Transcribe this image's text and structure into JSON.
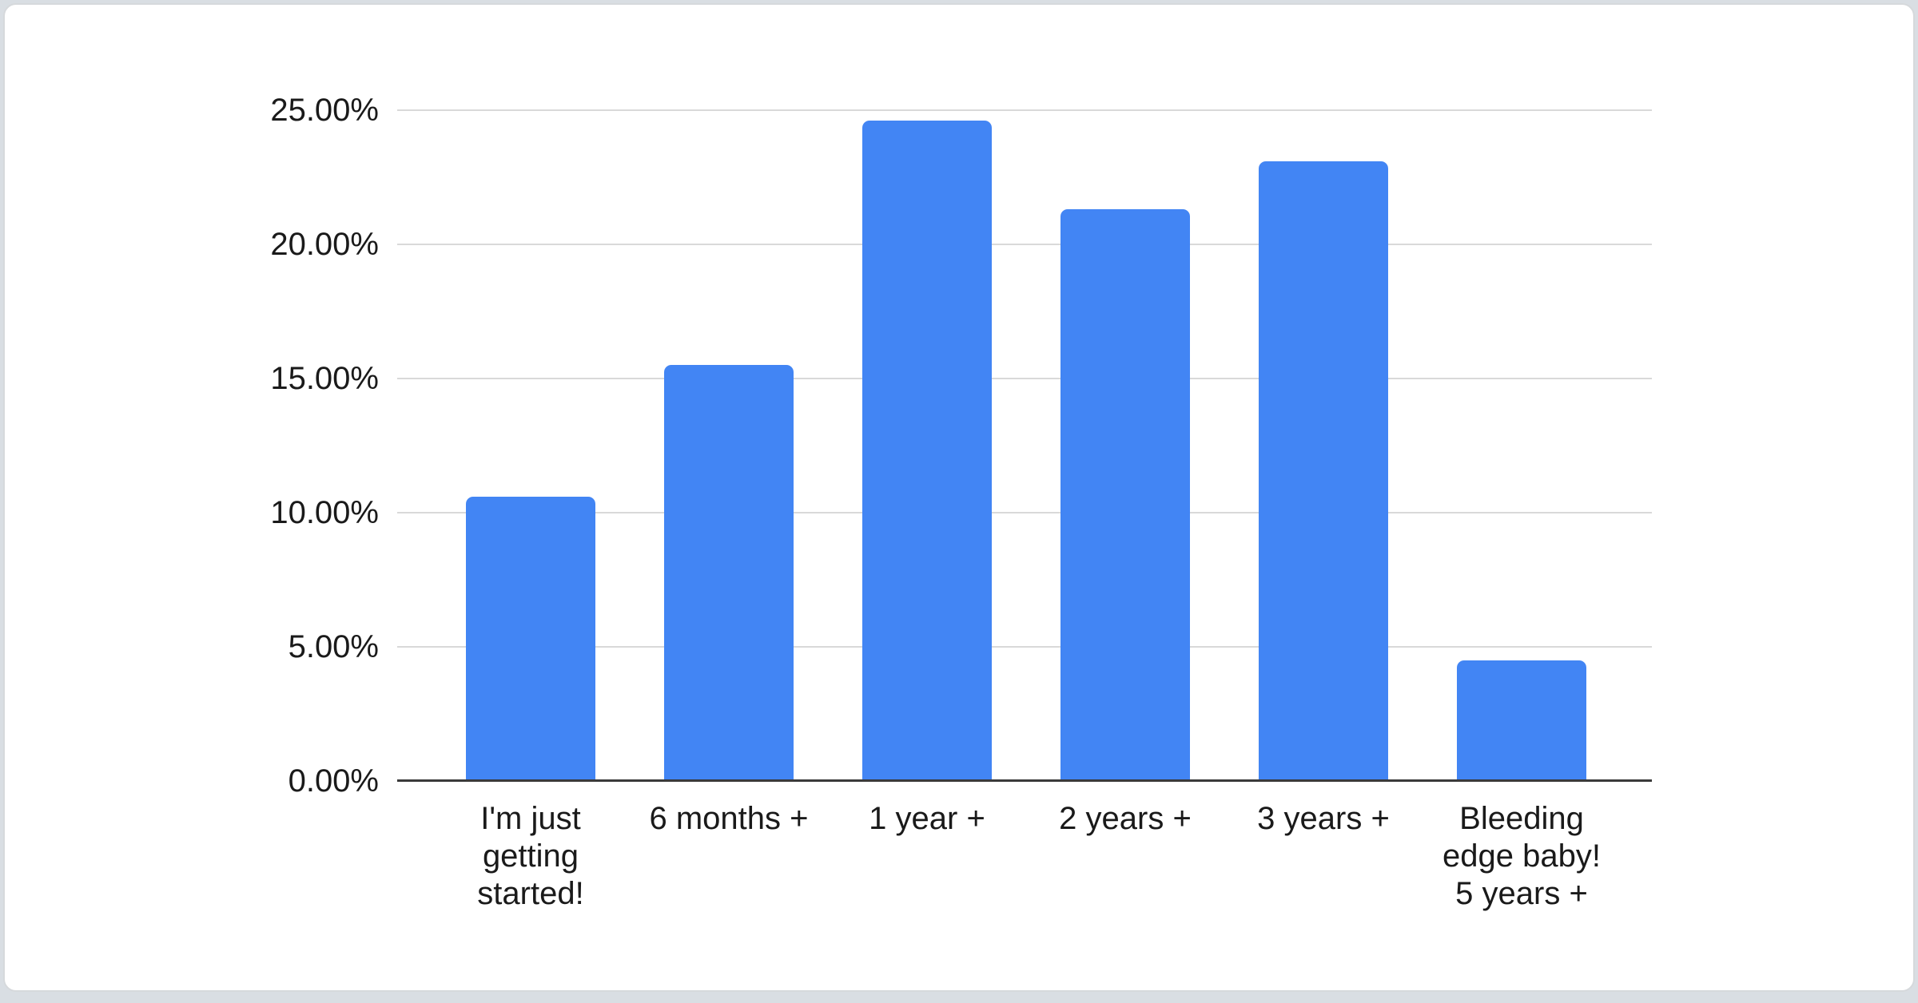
{
  "page": {
    "background_color": "#d9dee3",
    "card_background": "#ffffff",
    "card_border_color": "#d6d9dc"
  },
  "chart_data": {
    "type": "bar",
    "title": "",
    "xlabel": "",
    "ylabel": "",
    "categories": [
      "I'm just getting started!",
      "6 months +",
      "1 year +",
      "2 years +",
      "3 years +",
      "Bleeding edge baby! 5 years +"
    ],
    "label_lines": [
      [
        "I'm just",
        "getting",
        "started!"
      ],
      [
        "6 months +"
      ],
      [
        "1 year +"
      ],
      [
        "2 years +"
      ],
      [
        "3 years +"
      ],
      [
        "Bleeding",
        "edge baby!",
        "5 years +"
      ]
    ],
    "values": [
      10.6,
      15.5,
      24.6,
      21.3,
      23.1,
      4.5
    ],
    "unit": "%",
    "ylim": [
      0,
      25
    ],
    "yticks": [
      {
        "value": 0,
        "label": "0.00%"
      },
      {
        "value": 5,
        "label": "5.00%"
      },
      {
        "value": 10,
        "label": "10.00%"
      },
      {
        "value": 15,
        "label": "15.00%"
      },
      {
        "value": 20,
        "label": "20.00%"
      },
      {
        "value": 25,
        "label": "25.00%"
      }
    ],
    "grid": true,
    "legend": "none",
    "colors": {
      "bar": "#4285f4",
      "gridline": "#d9d9d9",
      "baseline": "#3a3a3a",
      "text": "#1a1a1a"
    }
  }
}
